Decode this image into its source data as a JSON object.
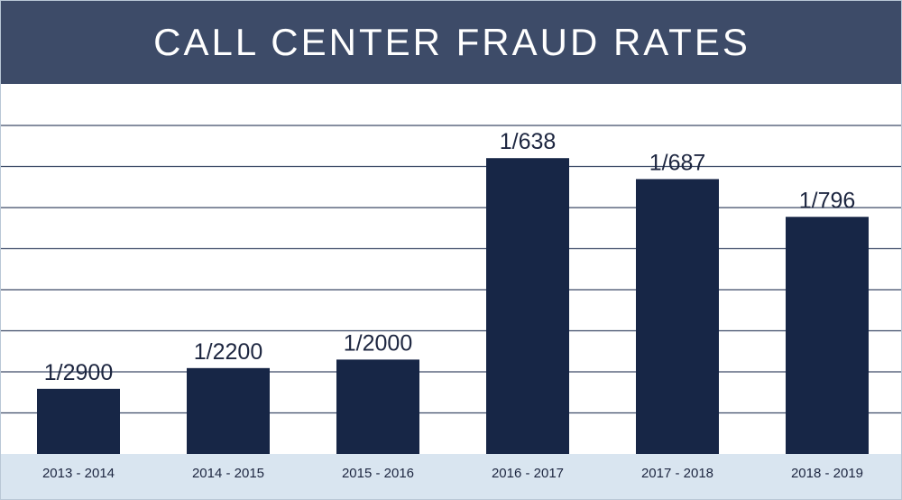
{
  "header": {
    "title": "CALL CENTER FRAUD RATES"
  },
  "chart_data": {
    "type": "bar",
    "title": "CALL CENTER FRAUD RATES",
    "xlabel": "",
    "ylabel": "",
    "categories": [
      "2013 - 2014",
      "2014 - 2015",
      "2015 - 2016",
      "2016 - 2017",
      "2017 - 2018",
      "2018 - 2019"
    ],
    "value_labels": [
      "1/2900",
      "1/2200",
      "1/2000",
      "1/638",
      "1/687",
      "1/796"
    ],
    "values": [
      0.000345,
      0.000455,
      0.0005,
      0.001567,
      0.001456,
      0.001256
    ],
    "ylim": [
      0,
      0.00196
    ],
    "grid": true,
    "colors": {
      "bar": "#172646",
      "header": "#3d4b68",
      "footer": "#d9e5f0",
      "grid": "#3d4b68"
    }
  }
}
